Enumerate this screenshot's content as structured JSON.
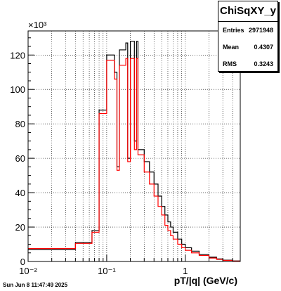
{
  "chart_data": {
    "type": "line",
    "title": "ChiSqXY_y",
    "xlabel": "pT/|q| (GeV/c)",
    "ylabel": "",
    "y_multiplier_label": "×10³",
    "x_scale": "log",
    "xlim": [
      0.01,
      5
    ],
    "ylim": [
      0,
      134
    ],
    "x_ticks": [
      {
        "value": 0.01,
        "label": "10⁻²"
      },
      {
        "value": 0.1,
        "label": "10⁻¹"
      },
      {
        "value": 1,
        "label": "1"
      }
    ],
    "y_ticks": [
      0,
      20,
      40,
      60,
      80,
      100,
      120
    ],
    "grid": true,
    "legend": "none",
    "series": [
      {
        "color": "#000000",
        "steps": [
          [
            0.01,
            7.0
          ],
          [
            0.04,
            11.0
          ],
          [
            0.065,
            18.0
          ],
          [
            0.08,
            88.0
          ],
          [
            0.1,
            120.0
          ],
          [
            0.125,
            110.0
          ],
          [
            0.135,
            55.0
          ],
          [
            0.145,
            123.0
          ],
          [
            0.175,
            127.0
          ],
          [
            0.185,
            60.0
          ],
          [
            0.2,
            128.0
          ],
          [
            0.225,
            70.0
          ],
          [
            0.24,
            128.0
          ],
          [
            0.25,
            65.0
          ],
          [
            0.3,
            58.0
          ],
          [
            0.35,
            52.0
          ],
          [
            0.4,
            45.0
          ],
          [
            0.45,
            38.0
          ],
          [
            0.5,
            32.0
          ],
          [
            0.55,
            27.0
          ],
          [
            0.6,
            23.0
          ],
          [
            0.65,
            20.0
          ],
          [
            0.7,
            17.0
          ],
          [
            0.8,
            13.0
          ],
          [
            0.9,
            10.0
          ],
          [
            1.0,
            8.0
          ],
          [
            1.2,
            6.0
          ],
          [
            1.5,
            4.0
          ],
          [
            2.0,
            2.5
          ],
          [
            2.5,
            1.5
          ],
          [
            3.0,
            0.8
          ],
          [
            4.0,
            0.3
          ]
        ]
      },
      {
        "color": "#ff0000",
        "steps": [
          [
            0.01,
            7.5
          ],
          [
            0.04,
            10.5
          ],
          [
            0.065,
            17.0
          ],
          [
            0.08,
            86.0
          ],
          [
            0.1,
            117.0
          ],
          [
            0.125,
            106.0
          ],
          [
            0.135,
            53.0
          ],
          [
            0.145,
            114.0
          ],
          [
            0.175,
            118.0
          ],
          [
            0.185,
            58.0
          ],
          [
            0.2,
            118.0
          ],
          [
            0.225,
            65.0
          ],
          [
            0.24,
            118.0
          ],
          [
            0.25,
            62.0
          ],
          [
            0.3,
            52.0
          ],
          [
            0.35,
            45.0
          ],
          [
            0.4,
            38.0
          ],
          [
            0.45,
            32.0
          ],
          [
            0.5,
            27.0
          ],
          [
            0.55,
            21.0
          ],
          [
            0.6,
            18.0
          ],
          [
            0.65,
            15.0
          ],
          [
            0.7,
            13.0
          ],
          [
            0.8,
            10.0
          ],
          [
            0.9,
            8.0
          ],
          [
            1.0,
            6.5
          ],
          [
            1.2,
            5.0
          ],
          [
            1.5,
            3.5
          ],
          [
            2.0,
            2.0
          ],
          [
            2.5,
            1.2
          ],
          [
            3.0,
            0.6
          ],
          [
            4.0,
            0.2
          ]
        ]
      }
    ],
    "stats": {
      "title": "ChiSqXY_y",
      "rows": [
        {
          "label": "Entries",
          "value": "2971948"
        },
        {
          "label": "Mean",
          "value": "0.4307"
        },
        {
          "label": "RMS",
          "value": "0.3243"
        }
      ]
    }
  },
  "footer": "Sun Jun  8 11:47:49 2025"
}
